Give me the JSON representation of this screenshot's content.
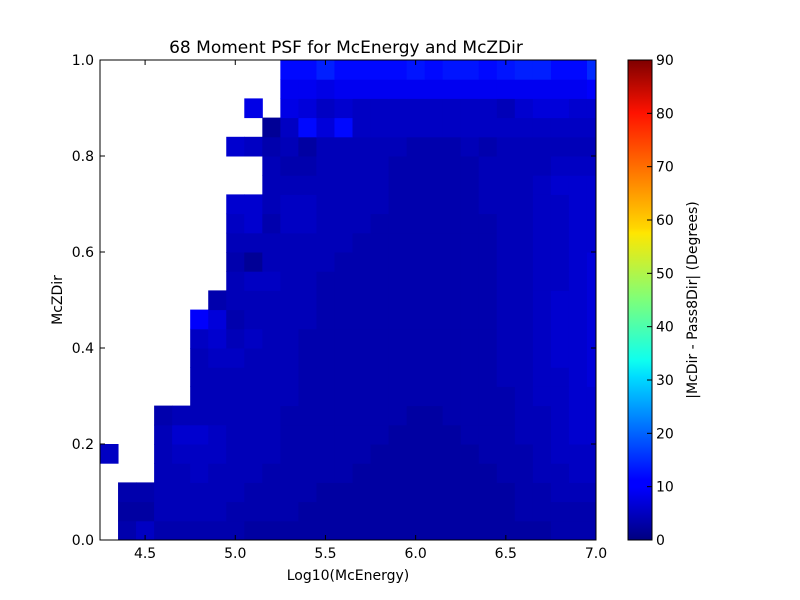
{
  "chart_data": {
    "type": "heatmap",
    "title": "68 Moment PSF for McEnergy and McZDir",
    "xlabel": "Log10(McEnergy)",
    "ylabel": "McZDir",
    "colorbar_label": "|McDir - Pass8Dir| (Degrees)",
    "colormap": "jet",
    "xlim": [
      4.25,
      7.0
    ],
    "ylim": [
      0.0,
      1.0
    ],
    "clim": [
      0,
      90
    ],
    "x_bin_edges": [
      4.25,
      4.35,
      4.45,
      4.55,
      4.65,
      4.75,
      4.85,
      4.95,
      5.05,
      5.15,
      5.25,
      5.35,
      5.45,
      5.55,
      5.65,
      5.75,
      5.85,
      5.95,
      6.05,
      6.15,
      6.25,
      6.35,
      6.45,
      6.55,
      6.65,
      6.75,
      6.85,
      6.95,
      7.0
    ],
    "y_bin_edges": [
      0.0,
      0.04,
      0.08,
      0.12,
      0.16,
      0.2,
      0.24,
      0.28,
      0.32,
      0.36,
      0.4,
      0.44,
      0.48,
      0.52,
      0.56,
      0.6,
      0.64,
      0.68,
      0.72,
      0.76,
      0.8,
      0.84,
      0.88,
      0.92,
      0.96,
      1.0
    ],
    "values_note": "rows indexed from McZDir=0 upward; null = empty bin",
    "values": [
      [
        null,
        4,
        6,
        4,
        4,
        4,
        4,
        4,
        3,
        3,
        3,
        3,
        3,
        3,
        3,
        3,
        3,
        3,
        3,
        3,
        3,
        3,
        3,
        3,
        3,
        4,
        4,
        4
      ],
      [
        null,
        3,
        3,
        5,
        5,
        5,
        5,
        4,
        4,
        4,
        4,
        3,
        3,
        3,
        3,
        3,
        3,
        3,
        3,
        3,
        3,
        3,
        3,
        4,
        4,
        4,
        4,
        4
      ],
      [
        null,
        4,
        4,
        5,
        5,
        5,
        5,
        5,
        4,
        4,
        4,
        4,
        3,
        3,
        3,
        3,
        3,
        3,
        3,
        3,
        3,
        3,
        3,
        4,
        4,
        5,
        5,
        5
      ],
      [
        null,
        null,
        null,
        5,
        5,
        6,
        5,
        5,
        5,
        4,
        4,
        4,
        4,
        4,
        3,
        3,
        3,
        3,
        3,
        3,
        3,
        3,
        4,
        4,
        5,
        5,
        6,
        6
      ],
      [
        6,
        null,
        null,
        5,
        6,
        6,
        6,
        5,
        5,
        5,
        4,
        4,
        4,
        4,
        4,
        3,
        3,
        3,
        3,
        3,
        3,
        4,
        4,
        4,
        5,
        6,
        6,
        6
      ],
      [
        null,
        null,
        null,
        5,
        7,
        7,
        6,
        5,
        5,
        5,
        4,
        4,
        4,
        4,
        4,
        4,
        3,
        3,
        3,
        3,
        4,
        4,
        4,
        5,
        5,
        6,
        7,
        7
      ],
      [
        null,
        null,
        null,
        4,
        5,
        5,
        5,
        5,
        5,
        5,
        4,
        4,
        4,
        4,
        4,
        4,
        4,
        3,
        3,
        4,
        4,
        4,
        4,
        5,
        5,
        6,
        7,
        7
      ],
      [
        null,
        null,
        null,
        null,
        null,
        5,
        5,
        5,
        5,
        5,
        5,
        4,
        4,
        4,
        4,
        4,
        4,
        4,
        4,
        4,
        4,
        4,
        4,
        5,
        6,
        6,
        7,
        7
      ],
      [
        null,
        null,
        null,
        null,
        null,
        5,
        5,
        5,
        5,
        5,
        5,
        4,
        4,
        4,
        4,
        4,
        4,
        4,
        4,
        4,
        4,
        4,
        5,
        5,
        6,
        6,
        7,
        8
      ],
      [
        null,
        null,
        null,
        null,
        null,
        5,
        6,
        6,
        5,
        5,
        5,
        4,
        4,
        4,
        4,
        4,
        4,
        4,
        4,
        4,
        4,
        4,
        5,
        5,
        6,
        7,
        7,
        8
      ],
      [
        null,
        null,
        null,
        null,
        null,
        6,
        7,
        5,
        6,
        5,
        5,
        4,
        4,
        4,
        4,
        4,
        4,
        4,
        4,
        4,
        4,
        4,
        5,
        5,
        6,
        7,
        7,
        8
      ],
      [
        null,
        null,
        null,
        null,
        null,
        11,
        8,
        4,
        5,
        5,
        5,
        5,
        4,
        4,
        4,
        4,
        4,
        4,
        4,
        4,
        4,
        4,
        5,
        5,
        6,
        7,
        7,
        8
      ],
      [
        null,
        null,
        null,
        null,
        null,
        null,
        4,
        5,
        5,
        5,
        5,
        5,
        4,
        4,
        4,
        4,
        4,
        4,
        4,
        4,
        4,
        4,
        5,
        5,
        6,
        7,
        7,
        8
      ],
      [
        null,
        null,
        null,
        null,
        null,
        null,
        null,
        5,
        6,
        6,
        5,
        5,
        4,
        4,
        4,
        4,
        4,
        4,
        4,
        4,
        4,
        4,
        5,
        5,
        6,
        6,
        7,
        8
      ],
      [
        null,
        null,
        null,
        null,
        null,
        null,
        null,
        4,
        2,
        5,
        5,
        5,
        5,
        4,
        4,
        4,
        4,
        4,
        4,
        4,
        4,
        4,
        5,
        5,
        6,
        6,
        7,
        8
      ],
      [
        null,
        null,
        null,
        null,
        null,
        null,
        null,
        5,
        5,
        5,
        5,
        5,
        5,
        5,
        4,
        4,
        4,
        4,
        4,
        4,
        4,
        4,
        5,
        5,
        6,
        6,
        7,
        7
      ],
      [
        null,
        null,
        null,
        null,
        null,
        null,
        null,
        6,
        7,
        4,
        6,
        6,
        5,
        5,
        5,
        4,
        4,
        4,
        4,
        4,
        4,
        4,
        5,
        5,
        6,
        6,
        7,
        7
      ],
      [
        null,
        null,
        null,
        null,
        null,
        null,
        null,
        7,
        7,
        5,
        6,
        6,
        5,
        5,
        5,
        5,
        4,
        4,
        4,
        4,
        4,
        5,
        5,
        5,
        6,
        6,
        7,
        7
      ],
      [
        null,
        null,
        null,
        null,
        null,
        null,
        null,
        null,
        null,
        5,
        5,
        5,
        5,
        5,
        5,
        5,
        4,
        4,
        4,
        4,
        4,
        5,
        5,
        5,
        6,
        7,
        7,
        7
      ],
      [
        null,
        null,
        null,
        null,
        null,
        null,
        null,
        null,
        null,
        5,
        4,
        4,
        5,
        5,
        5,
        5,
        4,
        4,
        4,
        4,
        4,
        5,
        5,
        5,
        5,
        6,
        6,
        6
      ],
      [
        null,
        null,
        null,
        null,
        null,
        null,
        null,
        7,
        6,
        4,
        5,
        3,
        5,
        5,
        5,
        5,
        5,
        4,
        4,
        4,
        5,
        4,
        5,
        5,
        5,
        5,
        5,
        5
      ],
      [
        null,
        null,
        null,
        null,
        null,
        null,
        null,
        null,
        null,
        2,
        6,
        12,
        8,
        12,
        6,
        6,
        6,
        6,
        6,
        6,
        6,
        6,
        6,
        6,
        6,
        6,
        6,
        6
      ],
      [
        null,
        null,
        null,
        null,
        null,
        null,
        null,
        null,
        9,
        null,
        9,
        8,
        6,
        7,
        6,
        6,
        6,
        6,
        6,
        6,
        6,
        6,
        5,
        7,
        8,
        8,
        7,
        7
      ],
      [
        null,
        null,
        null,
        null,
        null,
        null,
        null,
        null,
        null,
        null,
        10,
        10,
        9,
        10,
        10,
        10,
        10,
        10,
        10,
        10,
        10,
        10,
        10,
        10,
        10,
        10,
        10,
        11
      ],
      [
        null,
        null,
        null,
        null,
        null,
        null,
        null,
        null,
        null,
        null,
        12,
        12,
        14,
        12,
        12,
        12,
        12,
        13,
        12,
        13,
        13,
        12,
        13,
        14,
        14,
        12,
        12,
        15
      ]
    ],
    "x_ticks": [
      "4.5",
      "5.0",
      "5.5",
      "6.0",
      "6.5",
      "7.0"
    ],
    "x_tick_values": [
      4.5,
      5.0,
      5.5,
      6.0,
      6.5,
      7.0
    ],
    "y_ticks": [
      "0.0",
      "0.2",
      "0.4",
      "0.6",
      "0.8",
      "1.0"
    ],
    "y_tick_values": [
      0.0,
      0.2,
      0.4,
      0.6,
      0.8,
      1.0
    ],
    "colorbar_ticks": [
      "0",
      "10",
      "20",
      "30",
      "40",
      "50",
      "60",
      "70",
      "80",
      "90"
    ],
    "colorbar_tick_values": [
      0,
      10,
      20,
      30,
      40,
      50,
      60,
      70,
      80,
      90
    ]
  }
}
